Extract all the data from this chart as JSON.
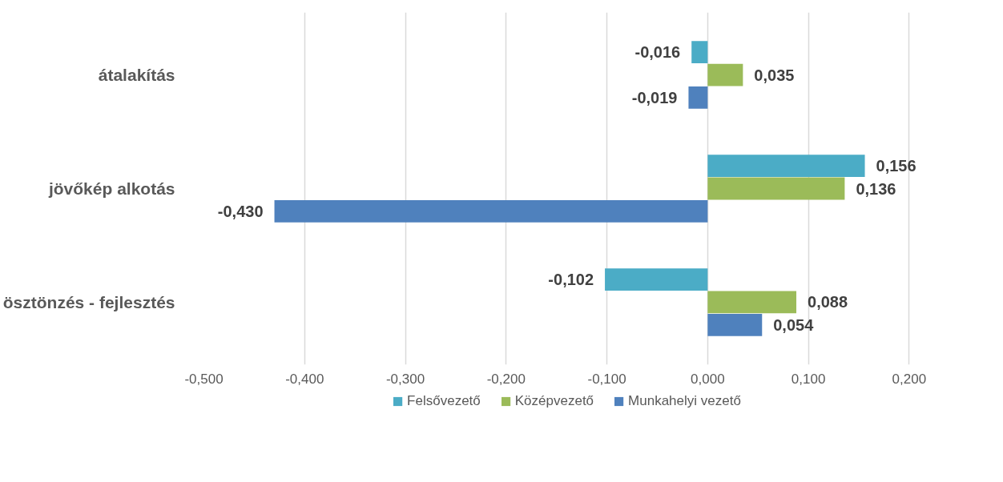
{
  "chart_data": {
    "type": "bar",
    "orientation": "horizontal",
    "categories": [
      "átalakítás",
      "jövőkép alkotás",
      "ösztönzés - fejlesztés"
    ],
    "series": [
      {
        "name": "Felsővezető",
        "color": "#4bacc6",
        "values": [
          -0.016,
          0.156,
          -0.102
        ],
        "value_labels": [
          "-0,016",
          "0,156",
          "-0,102"
        ]
      },
      {
        "name": "Középvezető",
        "color": "#9bbb59",
        "values": [
          0.035,
          0.136,
          0.088
        ],
        "value_labels": [
          "0,035",
          "0,136",
          "0,088"
        ]
      },
      {
        "name": "Munkahelyi vezető",
        "color": "#4f81bd",
        "values": [
          -0.019,
          -0.43,
          0.054
        ],
        "value_labels": [
          "-0,019",
          "-0,430",
          "0,054"
        ]
      }
    ],
    "xlim": [
      -0.5,
      0.2
    ],
    "xticks": [
      {
        "value": -0.5,
        "label": "-0,500"
      },
      {
        "value": -0.4,
        "label": "-0,400"
      },
      {
        "value": -0.3,
        "label": "-0,300"
      },
      {
        "value": -0.2,
        "label": "-0,200"
      },
      {
        "value": -0.1,
        "label": "-0,100"
      },
      {
        "value": 0,
        "label": "0,000"
      },
      {
        "value": 0.1,
        "label": "0,100"
      },
      {
        "value": 0.2,
        "label": "0,200"
      }
    ],
    "grid": "x",
    "legend": "bottom"
  }
}
